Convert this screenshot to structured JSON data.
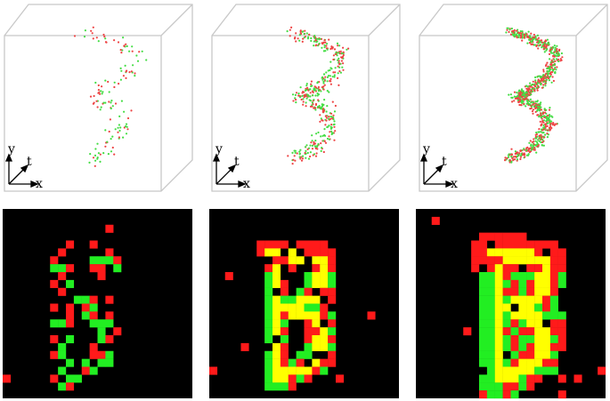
{
  "axis_labels": {
    "y": "y",
    "t": "t",
    "x": "x"
  },
  "colors": {
    "red": "#ff1a1a",
    "green": "#22ee22",
    "yellow": "#ffff00",
    "background": "#000000",
    "cube_edge": "#c8c8c8",
    "points_red": "#ee4444",
    "points_green": "#44dd44"
  },
  "panels": [
    {
      "column": 1,
      "density": "sparse"
    },
    {
      "column": 2,
      "density": "medium"
    },
    {
      "column": 3,
      "density": "dense"
    }
  ]
}
